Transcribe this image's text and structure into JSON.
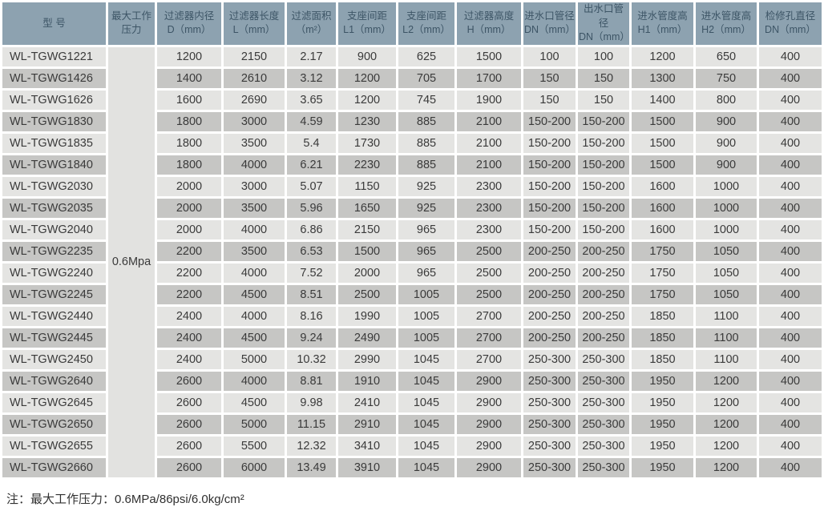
{
  "colors": {
    "header_bg": "#8DA2B0",
    "header_text": "#3D5566",
    "row_light": "#E4E4E2",
    "row_dark": "#C6C6C4",
    "pressure_cell_bg": "#E2E2E0",
    "body_text": "#3A3A3A"
  },
  "table": {
    "headers": [
      {
        "line1": "型 号",
        "line2": ""
      },
      {
        "line1": "最大工作",
        "line2": "压力"
      },
      {
        "line1": "过滤器内径",
        "line2": "D（mm）"
      },
      {
        "line1": "过滤器长度",
        "line2": "L（mm）"
      },
      {
        "line1": "过滤面积",
        "line2": "（m²）"
      },
      {
        "line1": "支座间距",
        "line2": "L1（mm）"
      },
      {
        "line1": "支座间距",
        "line2": "L2（mm）"
      },
      {
        "line1": "过滤器高度",
        "line2": "H（mm）"
      },
      {
        "line1": "进水口管径",
        "line2": "DN（mm）"
      },
      {
        "line1": "出水口管径",
        "line2": "DN（mm）"
      },
      {
        "line1": "进水管度高",
        "line2": "H1（mm）"
      },
      {
        "line1": "进水管度高",
        "line2": "H2（mm）"
      },
      {
        "line1": "检修孔直径",
        "line2": "DN（mm）"
      }
    ],
    "pressure_merged_value": "0.6Mpa",
    "rows": [
      {
        "model": "WL-TGWG1221",
        "values": [
          "1200",
          "2150",
          "2.17",
          "900",
          "625",
          "1500",
          "100",
          "100",
          "1200",
          "650",
          "400"
        ]
      },
      {
        "model": "WL-TGWG1426",
        "values": [
          "1400",
          "2610",
          "3.12",
          "1200",
          "705",
          "1700",
          "150",
          "150",
          "1300",
          "750",
          "400"
        ]
      },
      {
        "model": "WL-TGWG1626",
        "values": [
          "1600",
          "2690",
          "3.65",
          "1200",
          "745",
          "1900",
          "150",
          "150",
          "1400",
          "800",
          "400"
        ]
      },
      {
        "model": "WL-TGWG1830",
        "values": [
          "1800",
          "3000",
          "4.59",
          "1230",
          "885",
          "2100",
          "150-200",
          "150-200",
          "1500",
          "900",
          "400"
        ]
      },
      {
        "model": "WL-TGWG1835",
        "values": [
          "1800",
          "3500",
          "5.4",
          "1730",
          "885",
          "2100",
          "150-200",
          "150-200",
          "1500",
          "900",
          "400"
        ]
      },
      {
        "model": "WL-TGWG1840",
        "values": [
          "1800",
          "4000",
          "6.21",
          "2230",
          "885",
          "2100",
          "150-200",
          "150-200",
          "1500",
          "900",
          "400"
        ]
      },
      {
        "model": "WL-TGWG2030",
        "values": [
          "2000",
          "3000",
          "5.07",
          "1150",
          "925",
          "2300",
          "150-200",
          "150-200",
          "1600",
          "1000",
          "400"
        ]
      },
      {
        "model": "WL-TGWG2035",
        "values": [
          "2000",
          "3500",
          "5.96",
          "1650",
          "925",
          "2300",
          "150-200",
          "150-200",
          "1600",
          "1000",
          "400"
        ]
      },
      {
        "model": "WL-TGWG2040",
        "values": [
          "2000",
          "4000",
          "6.86",
          "2150",
          "965",
          "2300",
          "150-200",
          "150-200",
          "1600",
          "1000",
          "400"
        ]
      },
      {
        "model": "WL-TGWG2235",
        "values": [
          "2200",
          "3500",
          "6.53",
          "1500",
          "965",
          "2500",
          "200-250",
          "200-250",
          "1750",
          "1050",
          "400"
        ]
      },
      {
        "model": "WL-TGWG2240",
        "values": [
          "2200",
          "4000",
          "7.52",
          "2000",
          "965",
          "2500",
          "200-250",
          "200-250",
          "1750",
          "1050",
          "400"
        ]
      },
      {
        "model": "WL-TGWG2245",
        "values": [
          "2200",
          "4500",
          "8.51",
          "2500",
          "1005",
          "2500",
          "200-250",
          "200-250",
          "1750",
          "1050",
          "400"
        ]
      },
      {
        "model": "WL-TGWG2440",
        "values": [
          "2400",
          "4000",
          "8.16",
          "1990",
          "1005",
          "2700",
          "200-250",
          "200-250",
          "1850",
          "1100",
          "400"
        ]
      },
      {
        "model": "WL-TGWG2445",
        "values": [
          "2400",
          "4500",
          "9.24",
          "2490",
          "1005",
          "2700",
          "200-250",
          "200-250",
          "1850",
          "1100",
          "400"
        ]
      },
      {
        "model": "WL-TGWG2450",
        "values": [
          "2400",
          "5000",
          "10.32",
          "2990",
          "1045",
          "2700",
          "250-300",
          "250-300",
          "1850",
          "1100",
          "400"
        ]
      },
      {
        "model": "WL-TGWG2640",
        "values": [
          "2600",
          "4000",
          "8.81",
          "1910",
          "1045",
          "2900",
          "250-300",
          "250-300",
          "1950",
          "1200",
          "400"
        ]
      },
      {
        "model": "WL-TGWG2645",
        "values": [
          "2600",
          "4500",
          "9.98",
          "2410",
          "1045",
          "2900",
          "250-300",
          "250-300",
          "1950",
          "1200",
          "400"
        ]
      },
      {
        "model": "WL-TGWG2650",
        "values": [
          "2600",
          "5000",
          "11.15",
          "2910",
          "1045",
          "2900",
          "250-300",
          "250-300",
          "1950",
          "1200",
          "400"
        ]
      },
      {
        "model": "WL-TGWG2655",
        "values": [
          "2600",
          "5500",
          "12.32",
          "3410",
          "1045",
          "2900",
          "250-300",
          "250-300",
          "1950",
          "1200",
          "400"
        ]
      },
      {
        "model": "WL-TGWG2660",
        "values": [
          "2600",
          "6000",
          "13.49",
          "3910",
          "1045",
          "2900",
          "250-300",
          "250-300",
          "1950",
          "1200",
          "400"
        ]
      }
    ]
  },
  "note": "注：最大工作压力：0.6MPa/86psi/6.0kg/cm²"
}
